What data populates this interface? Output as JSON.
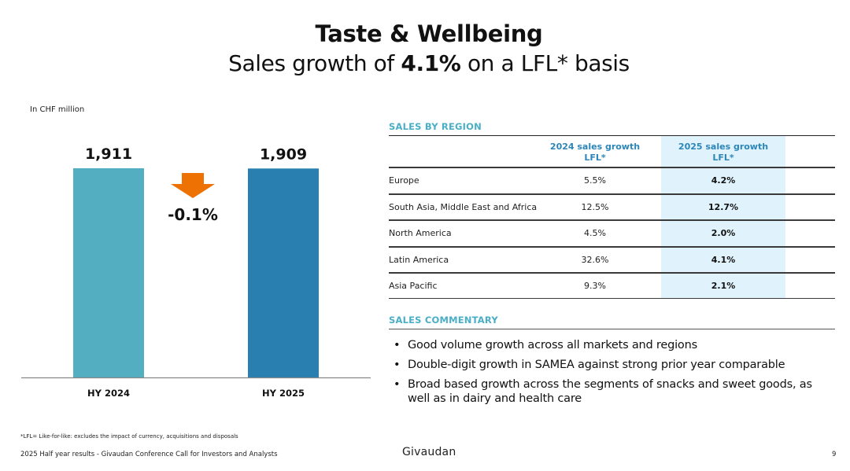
{
  "header": {
    "title": "Taste & Wellbeing",
    "subtitle_pre": "Sales growth of ",
    "subtitle_bold": "4.1%",
    "subtitle_post": " on a LFL* basis"
  },
  "chart_data": {
    "type": "bar",
    "title": "",
    "unit_label": "In CHF million",
    "categories": [
      "HY 2024",
      "HY 2025"
    ],
    "values": [
      1911,
      1909
    ],
    "value_labels": [
      "1,911",
      "1,909"
    ],
    "colors": [
      "#54aec1",
      "#2980b0"
    ],
    "change": {
      "label": "-0.1%",
      "direction": "down",
      "color": "#ee7203"
    },
    "xlabel": "",
    "ylabel": "",
    "ylim": [
      0,
      1911
    ],
    "grid": false
  },
  "sales_by_region": {
    "heading": "SALES BY REGION",
    "columns": [
      "",
      "2024 sales growth\nLFL*",
      "2025 sales growth\nLFL*"
    ],
    "col1_line1": "2024 sales growth",
    "col1_line2": "LFL*",
    "col2_line1": "2025 sales growth",
    "col2_line2": "LFL*",
    "rows": [
      {
        "region": "Europe",
        "y2024": "5.5%",
        "y2025": "4.2%"
      },
      {
        "region": "South Asia, Middle East and Africa",
        "y2024": "12.5%",
        "y2025": "12.7%"
      },
      {
        "region": "North America",
        "y2024": "4.5%",
        "y2025": "2.0%"
      },
      {
        "region": "Latin America",
        "y2024": "32.6%",
        "y2025": "4.1%"
      },
      {
        "region": "Asia Pacific",
        "y2024": "9.3%",
        "y2025": "2.1%"
      }
    ]
  },
  "sales_commentary": {
    "heading": "SALES COMMENTARY",
    "bullet_glyph": "•",
    "items": [
      "Good volume growth across all markets and regions",
      "Double-digit growth in SAMEA against strong prior year comparable",
      "Broad based growth across the segments of snacks and sweet goods, as well as in dairy and health care"
    ]
  },
  "footer": {
    "footnote": "*LFL= Like-for-like: excludes the impact of currency, acquisitions and disposals",
    "event": "2025 Half year results - Givaudan Conference Call for Investors and Analysts",
    "logo": "Givaudan",
    "page": "9"
  }
}
